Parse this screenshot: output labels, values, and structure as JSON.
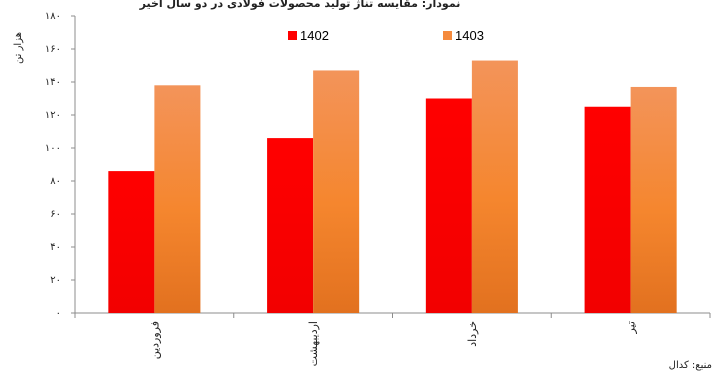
{
  "chart_data": {
    "type": "bar",
    "title": "نمودار: مقایسه تناژ تولید محصولات فولادی در دو سال اخیر",
    "ylabel": "هزار تن",
    "source": "منبع: کدال",
    "categories": [
      "فروردین",
      "اردیبهشت",
      "خرداد",
      "تیر"
    ],
    "series": [
      {
        "name": "1402",
        "values": [
          86,
          106,
          130,
          125
        ],
        "color": "#ff0000"
      },
      {
        "name": "1403",
        "values": [
          138,
          147,
          153,
          137
        ],
        "color": "#f58a3c"
      }
    ],
    "ylim": [
      0,
      180
    ],
    "yticks": [
      "۰",
      "۲۰",
      "۴۰",
      "۶۰",
      "۸۰",
      "۱۰۰",
      "۱۲۰",
      "۱۴۰",
      "۱۶۰",
      "۱۸۰"
    ],
    "legend_position": "top",
    "grid": false
  }
}
